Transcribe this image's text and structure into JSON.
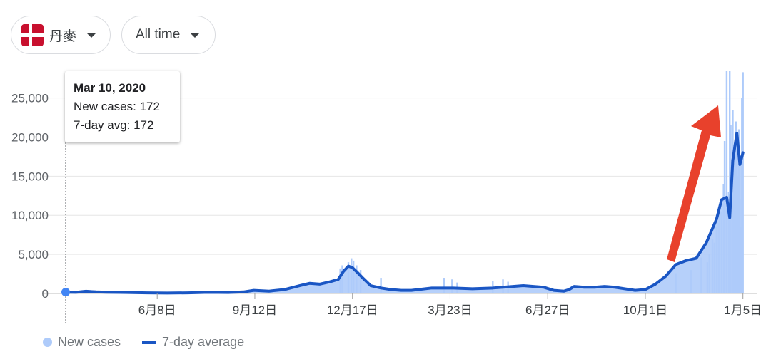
{
  "filters": {
    "country": "丹麥",
    "range": "All time"
  },
  "tooltip": {
    "date": "Mar 10, 2020",
    "new_cases_line": "New cases: 172",
    "avg_line": "7-day avg: 172"
  },
  "legend": {
    "new_cases": "New cases",
    "avg": "7-day average"
  },
  "colors": {
    "bars": "#aecbfa",
    "avg_line": "#1a56c4",
    "arrow": "#e8412c"
  },
  "chart_data": {
    "type": "bar",
    "title": "",
    "xlabel": "",
    "ylabel": "",
    "ylim": [
      0,
      28000
    ],
    "y_ticks": [
      0,
      5000,
      10000,
      15000,
      20000,
      25000
    ],
    "y_tick_labels": [
      "0",
      "5,000",
      "10,000",
      "15,000",
      "20,000",
      "25,000"
    ],
    "x_ticks": [
      {
        "day": 90,
        "label": "6月8日"
      },
      {
        "day": 186,
        "label": "9月12日"
      },
      {
        "day": 282,
        "label": "12月17日"
      },
      {
        "day": 378,
        "label": "3月23日"
      },
      {
        "day": 474,
        "label": "6月27日"
      },
      {
        "day": 570,
        "label": "10月1日"
      },
      {
        "day": 666,
        "label": "1月5日"
      }
    ],
    "grid": true,
    "legend_position": "bottom-left",
    "series": [
      {
        "name": "7-day average",
        "type": "line",
        "days": [
          0,
          10,
          20,
          30,
          40,
          60,
          80,
          100,
          120,
          140,
          160,
          175,
          185,
          200,
          215,
          230,
          240,
          250,
          260,
          268,
          273,
          278,
          282,
          286,
          292,
          300,
          310,
          320,
          330,
          340,
          360,
          380,
          400,
          420,
          430,
          440,
          450,
          460,
          470,
          480,
          490,
          495,
          500,
          510,
          520,
          530,
          540,
          550,
          560,
          570,
          580,
          590,
          600,
          610,
          620,
          630,
          640,
          645,
          650,
          653,
          656,
          660,
          663,
          666
        ],
        "values": [
          172,
          150,
          280,
          200,
          160,
          120,
          80,
          60,
          80,
          150,
          120,
          200,
          400,
          300,
          500,
          1000,
          1300,
          1200,
          1500,
          1800,
          2800,
          3500,
          3300,
          2800,
          2000,
          1000,
          700,
          500,
          400,
          400,
          700,
          700,
          600,
          700,
          800,
          900,
          1000,
          900,
          800,
          400,
          300,
          500,
          900,
          800,
          800,
          900,
          800,
          600,
          400,
          500,
          1200,
          2200,
          3700,
          4200,
          4500,
          6500,
          9500,
          12000,
          12300,
          9700,
          17000,
          20500,
          16500,
          18000
        ]
      },
      {
        "name": "New cases",
        "type": "bar",
        "days": [
          270,
          272,
          278,
          281,
          283,
          286,
          290,
          310,
          372,
          380,
          385,
          420,
          430,
          435,
          600,
          615,
          625,
          631,
          633,
          636,
          638,
          640,
          642,
          643,
          645,
          647,
          648,
          650,
          652,
          653,
          654,
          656,
          657,
          659,
          660,
          661,
          662,
          663,
          664,
          665,
          666
        ],
        "values": [
          3200,
          3600,
          4000,
          4500,
          4200,
          3600,
          3000,
          2000,
          2000,
          1800,
          1400,
          1600,
          1800,
          1500,
          2600,
          3000,
          4600,
          4000,
          5000,
          7000,
          6500,
          8500,
          9000,
          11000,
          10500,
          14000,
          19500,
          28500,
          13000,
          28500,
          21500,
          23500,
          18000,
          22000,
          19000,
          15000,
          21000,
          12000,
          8500,
          25000,
          28300
        ]
      }
    ]
  }
}
